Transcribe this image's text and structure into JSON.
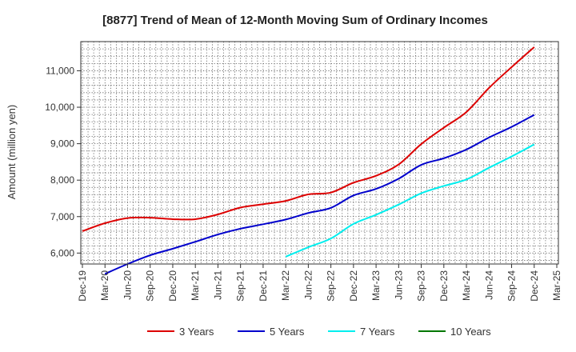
{
  "chart_data": {
    "type": "line",
    "title": "[8877]  Trend of Mean of 12-Month Moving Sum of Ordinary Incomes",
    "xlabel": "",
    "ylabel": "Amount (million yen)",
    "ylim": [
      5700,
      11800
    ],
    "yticks": [
      6000,
      7000,
      8000,
      9000,
      10000,
      11000
    ],
    "ytick_labels": [
      "6,000",
      "7,000",
      "8,000",
      "9,000",
      "10,000",
      "11,000"
    ],
    "categories": [
      "Dec-19",
      "Mar-20",
      "Jun-20",
      "Sep-20",
      "Dec-20",
      "Mar-21",
      "Jun-21",
      "Sep-21",
      "Dec-21",
      "Mar-22",
      "Jun-22",
      "Sep-22",
      "Dec-22",
      "Mar-23",
      "Jun-23",
      "Sep-23",
      "Dec-23",
      "Mar-24",
      "Jun-24",
      "Sep-24",
      "Dec-24",
      "Mar-25"
    ],
    "grid": true,
    "legend_position": "bottom",
    "series": [
      {
        "name": "3 Years",
        "color": "#dd0000",
        "values": [
          6600,
          6820,
          6960,
          6970,
          6930,
          6930,
          7060,
          7250,
          7340,
          7430,
          7610,
          7660,
          7930,
          8120,
          8430,
          8990,
          9440,
          9870,
          10530,
          11100,
          11650,
          null
        ]
      },
      {
        "name": "5 Years",
        "color": "#0000cc",
        "values": [
          null,
          5430,
          5700,
          5940,
          6120,
          6310,
          6510,
          6670,
          6790,
          6920,
          7100,
          7240,
          7580,
          7760,
          8040,
          8420,
          8600,
          8840,
          9170,
          9460,
          9790,
          null
        ]
      },
      {
        "name": "7 Years",
        "color": "#00eeee",
        "values": [
          null,
          null,
          null,
          null,
          null,
          null,
          null,
          null,
          null,
          5900,
          6160,
          6400,
          6800,
          7050,
          7330,
          7640,
          7840,
          8020,
          8340,
          8650,
          8980,
          null
        ]
      },
      {
        "name": "10 Years",
        "color": "#007700",
        "values": [
          null,
          null,
          null,
          null,
          null,
          null,
          null,
          null,
          null,
          null,
          null,
          null,
          null,
          null,
          null,
          null,
          null,
          null,
          null,
          null,
          null,
          null
        ]
      }
    ]
  }
}
